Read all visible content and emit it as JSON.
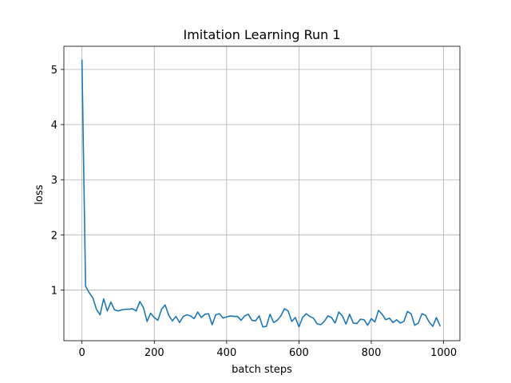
{
  "chart_data": {
    "type": "line",
    "title": "Imitation Learning Run 1",
    "xlabel": "batch steps",
    "ylabel": "loss",
    "xlim": [
      -50,
      1045
    ],
    "ylim": [
      0.08,
      5.42
    ],
    "xticks": [
      0,
      200,
      400,
      600,
      800,
      1000
    ],
    "yticks": [
      1,
      2,
      3,
      4,
      5
    ],
    "grid": true,
    "series": [
      {
        "color": "#1f77b4",
        "x": [
          0,
          10,
          20,
          30,
          40,
          50,
          60,
          70,
          80,
          90,
          100,
          110,
          120,
          130,
          140,
          150,
          160,
          170,
          180,
          190,
          200,
          210,
          220,
          230,
          240,
          250,
          260,
          270,
          280,
          290,
          300,
          310,
          320,
          330,
          340,
          350,
          360,
          370,
          380,
          390,
          400,
          410,
          420,
          430,
          440,
          450,
          460,
          470,
          480,
          490,
          500,
          510,
          520,
          530,
          540,
          550,
          560,
          570,
          580,
          590,
          600,
          610,
          620,
          630,
          640,
          650,
          660,
          670,
          680,
          690,
          700,
          710,
          720,
          730,
          740,
          750,
          760,
          770,
          780,
          790,
          800,
          810,
          820,
          830,
          840,
          850,
          860,
          870,
          880,
          890,
          900,
          910,
          920,
          930,
          940,
          950,
          960,
          970,
          980,
          990
        ],
        "y": [
          5.17,
          1.07,
          0.95,
          0.86,
          0.65,
          0.55,
          0.84,
          0.62,
          0.78,
          0.64,
          0.62,
          0.64,
          0.65,
          0.65,
          0.66,
          0.62,
          0.79,
          0.68,
          0.43,
          0.58,
          0.5,
          0.45,
          0.65,
          0.73,
          0.54,
          0.44,
          0.52,
          0.41,
          0.52,
          0.55,
          0.53,
          0.48,
          0.6,
          0.5,
          0.56,
          0.57,
          0.37,
          0.55,
          0.57,
          0.49,
          0.51,
          0.53,
          0.52,
          0.52,
          0.45,
          0.53,
          0.56,
          0.45,
          0.44,
          0.53,
          0.33,
          0.34,
          0.56,
          0.41,
          0.45,
          0.53,
          0.66,
          0.62,
          0.43,
          0.5,
          0.33,
          0.5,
          0.57,
          0.52,
          0.49,
          0.39,
          0.37,
          0.43,
          0.53,
          0.5,
          0.4,
          0.6,
          0.53,
          0.38,
          0.56,
          0.4,
          0.39,
          0.47,
          0.46,
          0.36,
          0.48,
          0.42,
          0.63,
          0.56,
          0.46,
          0.49,
          0.41,
          0.46,
          0.4,
          0.43,
          0.61,
          0.57,
          0.36,
          0.4,
          0.57,
          0.54,
          0.42,
          0.34,
          0.5,
          0.35
        ]
      }
    ]
  }
}
